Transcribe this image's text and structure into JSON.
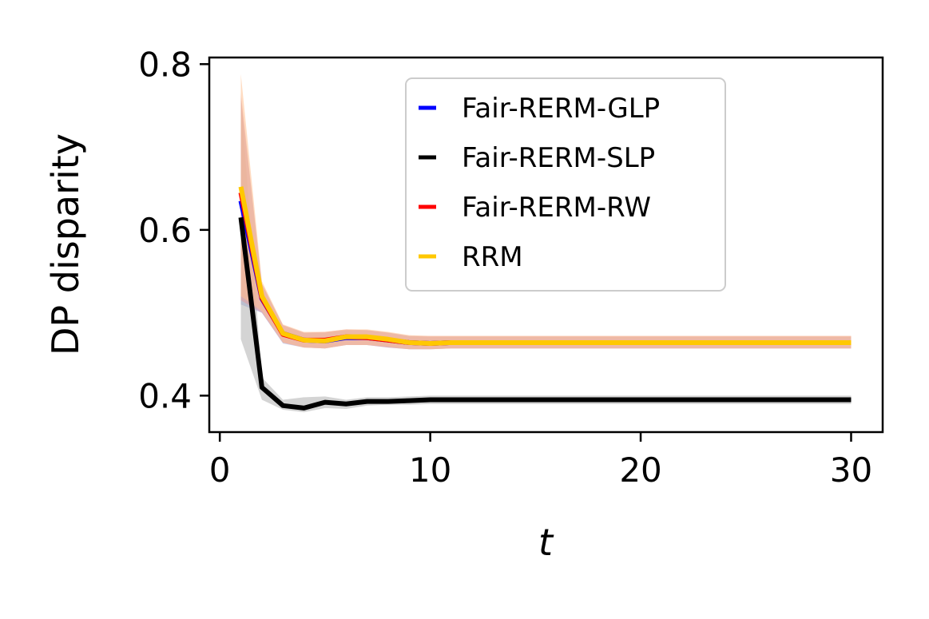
{
  "chart_data": {
    "type": "line",
    "title": "",
    "xlabel": "t",
    "ylabel": "DP disparity",
    "xlim": [
      -0.5,
      31.5
    ],
    "ylim": [
      0.356,
      0.808
    ],
    "xticks": [
      0,
      10,
      20,
      30
    ],
    "xtick_labels": [
      "0",
      "10",
      "20",
      "30"
    ],
    "yticks": [
      0.4,
      0.6,
      0.8
    ],
    "ytick_labels": [
      "0.4",
      "0.6",
      "0.8"
    ],
    "grid": false,
    "legend_position": "top-right",
    "x": [
      1,
      2,
      3,
      4,
      5,
      6,
      7,
      8,
      9,
      10,
      11,
      12,
      13,
      14,
      15,
      16,
      17,
      18,
      19,
      20,
      21,
      22,
      23,
      24,
      25,
      26,
      27,
      28,
      29,
      30
    ],
    "series": [
      {
        "name": "Fair-RERM-GLP",
        "color": "#0000ff",
        "band_color": "#9aa6e6",
        "values": [
          0.635,
          0.517,
          0.475,
          0.467,
          0.466,
          0.47,
          0.47,
          0.467,
          0.464,
          0.463,
          0.464,
          0.464,
          0.464,
          0.464,
          0.464,
          0.464,
          0.464,
          0.464,
          0.464,
          0.464,
          0.464,
          0.464,
          0.464,
          0.464,
          0.464,
          0.464,
          0.464,
          0.464,
          0.464,
          0.464
        ],
        "band_lower": [
          0.51,
          0.5,
          0.463,
          0.458,
          0.457,
          0.461,
          0.461,
          0.458,
          0.456,
          0.456,
          0.457,
          0.457,
          0.457,
          0.457,
          0.457,
          0.457,
          0.457,
          0.457,
          0.457,
          0.457,
          0.457,
          0.457,
          0.457,
          0.457,
          0.457,
          0.457,
          0.457,
          0.457,
          0.457,
          0.457
        ],
        "band_upper": [
          0.76,
          0.535,
          0.485,
          0.476,
          0.476,
          0.479,
          0.479,
          0.476,
          0.472,
          0.471,
          0.471,
          0.471,
          0.471,
          0.471,
          0.471,
          0.471,
          0.471,
          0.471,
          0.471,
          0.471,
          0.471,
          0.471,
          0.471,
          0.471,
          0.471,
          0.471,
          0.471,
          0.471,
          0.471,
          0.471
        ]
      },
      {
        "name": "Fair-RERM-SLP",
        "color": "#000000",
        "band_color": "#b0b0b0",
        "values": [
          0.615,
          0.41,
          0.388,
          0.385,
          0.392,
          0.39,
          0.393,
          0.393,
          0.394,
          0.395,
          0.395,
          0.395,
          0.395,
          0.395,
          0.395,
          0.395,
          0.395,
          0.395,
          0.395,
          0.395,
          0.395,
          0.395,
          0.395,
          0.395,
          0.395,
          0.395,
          0.395,
          0.395,
          0.395,
          0.395
        ],
        "band_lower": [
          0.468,
          0.395,
          0.383,
          0.38,
          0.385,
          0.384,
          0.388,
          0.389,
          0.389,
          0.39,
          0.39,
          0.39,
          0.39,
          0.39,
          0.39,
          0.39,
          0.39,
          0.39,
          0.39,
          0.39,
          0.39,
          0.39,
          0.39,
          0.39,
          0.39,
          0.39,
          0.39,
          0.39,
          0.39,
          0.39
        ],
        "band_upper": [
          0.76,
          0.422,
          0.395,
          0.398,
          0.399,
          0.395,
          0.398,
          0.398,
          0.399,
          0.4,
          0.4,
          0.4,
          0.4,
          0.4,
          0.4,
          0.4,
          0.4,
          0.4,
          0.4,
          0.4,
          0.4,
          0.4,
          0.4,
          0.4,
          0.4,
          0.4,
          0.4,
          0.4,
          0.4,
          0.4
        ]
      },
      {
        "name": "Fair-RERM-RW",
        "color": "#ff0000",
        "band_color": "#e89a9a",
        "values": [
          0.645,
          0.518,
          0.474,
          0.467,
          0.467,
          0.471,
          0.47,
          0.467,
          0.464,
          0.463,
          0.464,
          0.464,
          0.464,
          0.464,
          0.464,
          0.464,
          0.464,
          0.464,
          0.464,
          0.464,
          0.464,
          0.464,
          0.464,
          0.464,
          0.464,
          0.464,
          0.464,
          0.464,
          0.464,
          0.464
        ],
        "band_lower": [
          0.515,
          0.5,
          0.464,
          0.458,
          0.457,
          0.461,
          0.461,
          0.458,
          0.456,
          0.456,
          0.457,
          0.457,
          0.457,
          0.457,
          0.457,
          0.457,
          0.457,
          0.457,
          0.457,
          0.457,
          0.457,
          0.457,
          0.457,
          0.457,
          0.457,
          0.457,
          0.457,
          0.457,
          0.457,
          0.457
        ],
        "band_upper": [
          0.765,
          0.535,
          0.485,
          0.476,
          0.477,
          0.48,
          0.479,
          0.476,
          0.472,
          0.472,
          0.472,
          0.472,
          0.472,
          0.472,
          0.472,
          0.472,
          0.472,
          0.472,
          0.472,
          0.472,
          0.472,
          0.472,
          0.472,
          0.472,
          0.472,
          0.472,
          0.472,
          0.472,
          0.472,
          0.472
        ]
      },
      {
        "name": "RRM",
        "color": "#ffc800",
        "band_color": "#ffbf90",
        "values": [
          0.652,
          0.52,
          0.475,
          0.467,
          0.466,
          0.471,
          0.471,
          0.468,
          0.464,
          0.463,
          0.464,
          0.464,
          0.464,
          0.464,
          0.464,
          0.464,
          0.464,
          0.464,
          0.464,
          0.464,
          0.464,
          0.464,
          0.464,
          0.464,
          0.464,
          0.464,
          0.464,
          0.464,
          0.464,
          0.464
        ],
        "band_lower": [
          0.52,
          0.502,
          0.464,
          0.458,
          0.457,
          0.461,
          0.461,
          0.459,
          0.456,
          0.456,
          0.457,
          0.457,
          0.457,
          0.457,
          0.457,
          0.457,
          0.457,
          0.457,
          0.457,
          0.457,
          0.457,
          0.457,
          0.457,
          0.457,
          0.457,
          0.457,
          0.457,
          0.457,
          0.457,
          0.457
        ],
        "band_upper": [
          0.788,
          0.538,
          0.486,
          0.477,
          0.477,
          0.48,
          0.48,
          0.477,
          0.473,
          0.472,
          0.472,
          0.472,
          0.472,
          0.472,
          0.472,
          0.472,
          0.472,
          0.472,
          0.472,
          0.472,
          0.472,
          0.472,
          0.472,
          0.472,
          0.472,
          0.472,
          0.472,
          0.472,
          0.472,
          0.472
        ]
      }
    ]
  }
}
